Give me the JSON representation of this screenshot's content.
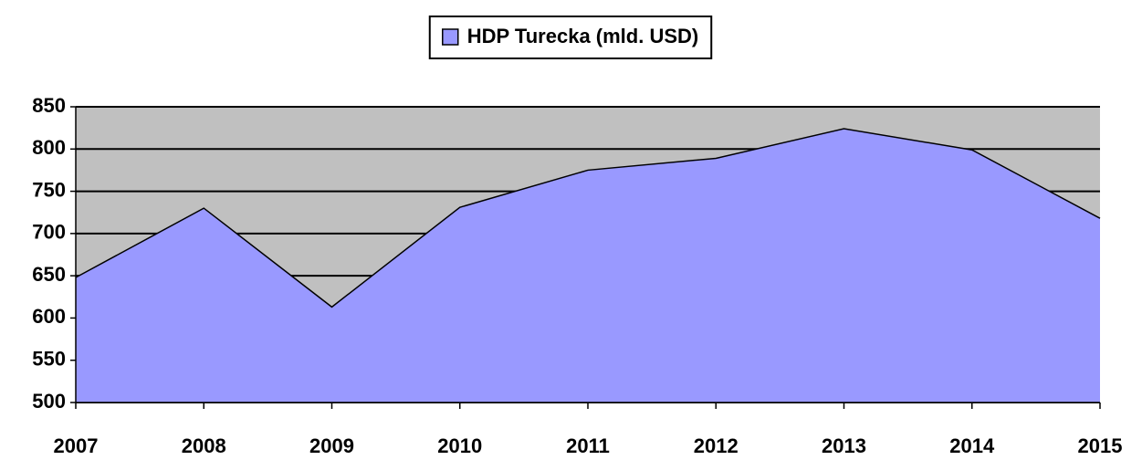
{
  "chart_data": {
    "type": "area",
    "categories": [
      "2007",
      "2008",
      "2009",
      "2010",
      "2011",
      "2012",
      "2013",
      "2014",
      "2015"
    ],
    "series": [
      {
        "name": "HDP Turecka (mld. USD)",
        "color": "#9999ff",
        "values": [
          648,
          730,
          613,
          731,
          775,
          789,
          824,
          799,
          718
        ]
      }
    ],
    "ylim": [
      500,
      850
    ],
    "yticks": [
      500,
      550,
      600,
      650,
      700,
      750,
      800,
      850
    ],
    "grid": true,
    "plot_background": "#c0c0c0",
    "legend": "top"
  }
}
